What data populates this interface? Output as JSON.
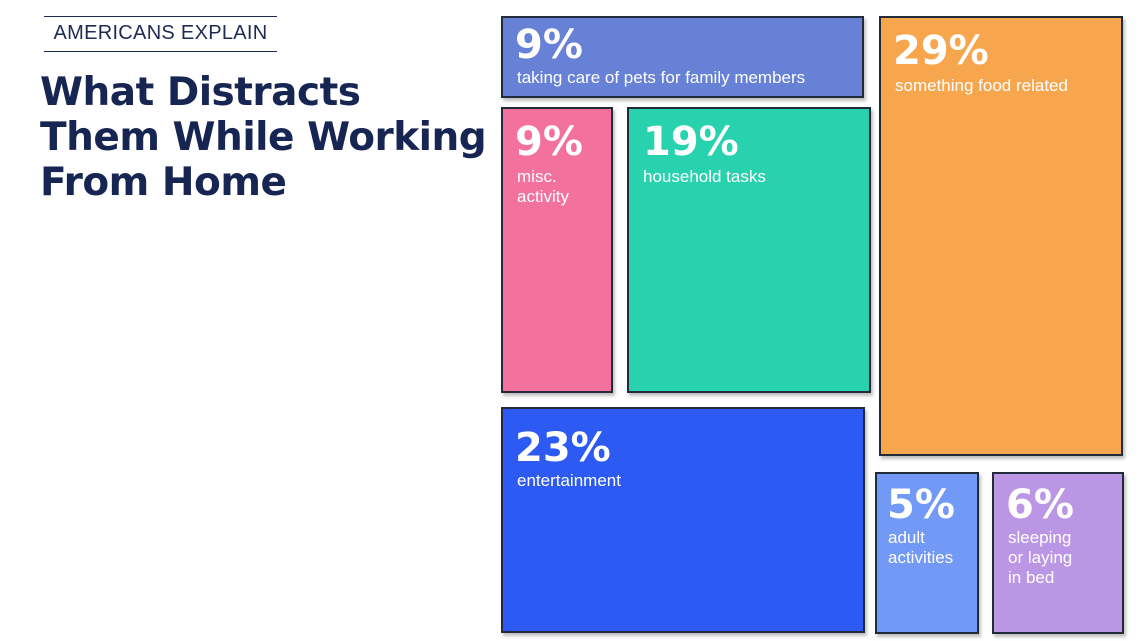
{
  "header": {
    "kicker": "AMERICANS EXPLAIN",
    "title_lines": [
      "What Distracts",
      "Them While Working",
      "From Home"
    ]
  },
  "chart_data": {
    "type": "treemap",
    "title": "What Distracts Them While Working From Home",
    "items": [
      {
        "key": "pets",
        "value": 9,
        "label": "9%",
        "name": "taking care of pets for family members",
        "color": "#6781d6"
      },
      {
        "key": "food",
        "value": 29,
        "label": "29%",
        "name": "something food related",
        "color": "#f7a64e"
      },
      {
        "key": "misc",
        "value": 9,
        "label": "9%",
        "name": "misc.\nactivity",
        "color": "#f2719d"
      },
      {
        "key": "household",
        "value": 19,
        "label": "19%",
        "name": "household tasks",
        "color": "#29d2ae"
      },
      {
        "key": "entertainment",
        "value": 23,
        "label": "23%",
        "name": "entertainment",
        "color": "#2d5af2"
      },
      {
        "key": "adult",
        "value": 5,
        "label": "5%",
        "name": "adult\nactivities",
        "color": "#7199f5"
      },
      {
        "key": "sleeping",
        "value": 6,
        "label": "6%",
        "name": "sleeping\nor laying\nin bed",
        "color": "#bb96e4"
      }
    ]
  }
}
